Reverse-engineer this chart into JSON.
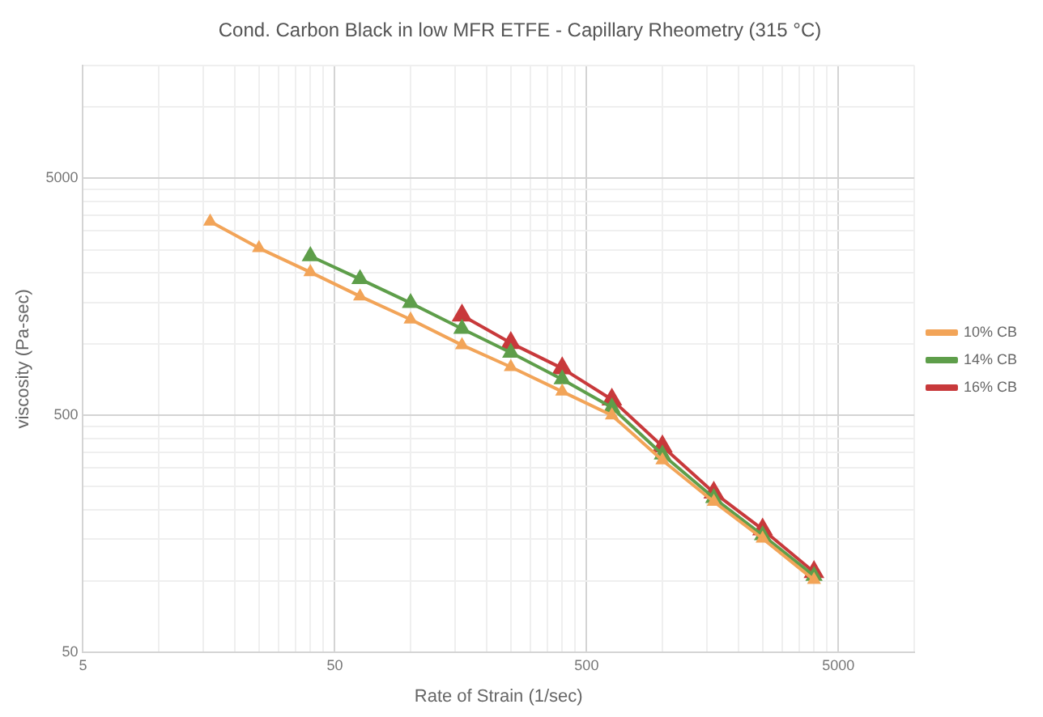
{
  "chart_data": {
    "type": "line",
    "title": "Cond. Carbon Black in low MFR ETFE - Capillary Rheometry (315 °C)",
    "xlabel": "Rate of Strain (1/sec)",
    "ylabel": "viscosity (Pa-sec)",
    "log": "xy",
    "grid": true,
    "legend": "right",
    "marker": "triangle",
    "line_style": "solid",
    "xlim": [
      5,
      10000
    ],
    "ylim": [
      50,
      15000
    ],
    "xticks": [
      5,
      {
        "value": 10,
        "label": null
      },
      {
        "value": 15,
        "label": null
      },
      {
        "value": 20,
        "label": null
      },
      {
        "value": 25,
        "label": null
      },
      {
        "value": 30,
        "label": null
      },
      {
        "value": 35,
        "label": null
      },
      {
        "value": 40,
        "label": null
      },
      {
        "value": 45,
        "label": null
      },
      50,
      {
        "value": 100,
        "label": null
      },
      {
        "value": 150,
        "label": null
      },
      {
        "value": 200,
        "label": null
      },
      {
        "value": 250,
        "label": null
      },
      {
        "value": 300,
        "label": null
      },
      {
        "value": 350,
        "label": null
      },
      {
        "value": 400,
        "label": null
      },
      {
        "value": 450,
        "label": null
      },
      500,
      {
        "value": 1000,
        "label": null
      },
      {
        "value": 1500,
        "label": null
      },
      {
        "value": 2000,
        "label": null
      },
      {
        "value": 2500,
        "label": null
      },
      {
        "value": 3000,
        "label": null
      },
      {
        "value": 3500,
        "label": null
      },
      {
        "value": 4000,
        "label": null
      },
      {
        "value": 4500,
        "label": null
      },
      5000,
      {
        "value": 10000,
        "label": null
      }
    ],
    "yticks": [
      50,
      {
        "value": 100,
        "label": null
      },
      {
        "value": 150,
        "label": null
      },
      {
        "value": 200,
        "label": null
      },
      {
        "value": 250,
        "label": null
      },
      {
        "value": 300,
        "label": null
      },
      {
        "value": 350,
        "label": null
      },
      {
        "value": 400,
        "label": null
      },
      {
        "value": 450,
        "label": null
      },
      500,
      {
        "value": 1000,
        "label": null
      },
      {
        "value": 1500,
        "label": null
      },
      {
        "value": 2000,
        "label": null
      },
      {
        "value": 2500,
        "label": null
      },
      {
        "value": 3000,
        "label": null
      },
      {
        "value": 3500,
        "label": null
      },
      {
        "value": 4000,
        "label": null
      },
      {
        "value": 4500,
        "label": null
      },
      5000,
      {
        "value": 10000,
        "label": null
      },
      {
        "value": 15000,
        "label": null
      }
    ],
    "series": [
      {
        "name": "10% CB",
        "color": "#f2a458",
        "x": [
          16,
          25,
          40,
          63,
          100,
          160,
          250,
          400,
          630,
          1000,
          1600,
          2500,
          4000
        ],
        "values": [
          3290,
          2540,
          2010,
          1590,
          1270,
          990,
          800,
          630,
          500,
          323,
          216,
          151,
          101
        ]
      },
      {
        "name": "14% CB",
        "color": "#5e9e4a",
        "x": [
          40,
          63,
          100,
          160,
          250,
          400,
          630,
          1000,
          1600,
          2500,
          4000
        ],
        "values": [
          2350,
          1880,
          1490,
          1160,
          920,
          710,
          540,
          342,
          224,
          156,
          105
        ]
      },
      {
        "name": "16% CB",
        "color": "#c8393b",
        "x": [
          160,
          250,
          400,
          630,
          1000,
          1600,
          2500,
          4000
        ],
        "values": [
          1320,
          1010,
          790,
          583,
          370,
          236,
          165,
          109
        ]
      }
    ]
  }
}
